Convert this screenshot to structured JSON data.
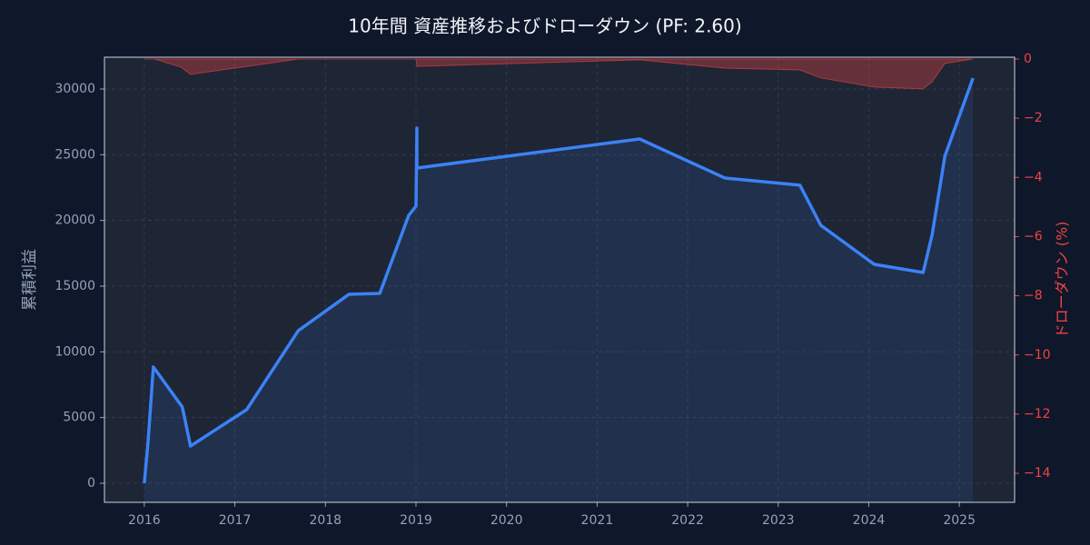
{
  "chart_data": {
    "type": "line",
    "title": "10年間 資産推移およびドローダウン (PF: 2.60)",
    "y_label": "累積利益",
    "y2_label": "ドローダウン (%)",
    "xlim": [
      2015.56,
      2025.61
    ],
    "xticks": [
      2016,
      2017,
      2018,
      2019,
      2020,
      2021,
      2022,
      2023,
      2024,
      2025
    ],
    "ylim": [
      -1450,
      32420
    ],
    "yticks": [
      0,
      5000,
      10000,
      15000,
      20000,
      25000,
      30000
    ],
    "y2lim": [
      -14.98,
      0.06
    ],
    "y2ticks": [
      0,
      {
        "value": -2,
        "label": "−2"
      },
      {
        "value": -4,
        "label": "−4"
      },
      {
        "value": -6,
        "label": "−6"
      },
      {
        "value": -8,
        "label": "−8"
      },
      {
        "value": -10,
        "label": "−10"
      },
      {
        "value": -12,
        "label": "−12"
      },
      {
        "value": -14,
        "label": "−14"
      }
    ],
    "grid": true,
    "series": [
      {
        "name": "累積利益",
        "color": "#3b82f6",
        "x": [
          2016.0,
          2016.04,
          2016.1,
          2016.42,
          2016.51,
          2017.13,
          2017.7,
          2018.26,
          2018.6,
          2018.92,
          2019.0,
          2019.01,
          2019.01,
          2021.47,
          2022.41,
          2023.24,
          2023.47,
          2024.06,
          2024.6,
          2024.7,
          2024.84,
          2025.15
        ],
        "values": [
          0,
          3040,
          8850,
          5800,
          2830,
          5600,
          11610,
          14380,
          14450,
          20390,
          21090,
          27030,
          23990,
          26200,
          23230,
          22680,
          19630,
          16660,
          16040,
          18940,
          24890,
          30830
        ]
      },
      {
        "name": "ドローダウン",
        "color": "#ef4444",
        "axis": "y2",
        "x": [
          2016.0,
          2016.11,
          2016.41,
          2016.51,
          2017.13,
          2017.7,
          2019.0,
          2019.01,
          2021.47,
          2022.41,
          2023.24,
          2023.47,
          2024.06,
          2024.6,
          2024.7,
          2024.84,
          2025.15
        ],
        "values": [
          0,
          0,
          -0.28,
          -0.52,
          -0.25,
          0,
          0,
          -0.25,
          -0.03,
          -0.31,
          -0.37,
          -0.64,
          -0.95,
          -1.01,
          -0.77,
          -0.15,
          0
        ]
      }
    ]
  }
}
